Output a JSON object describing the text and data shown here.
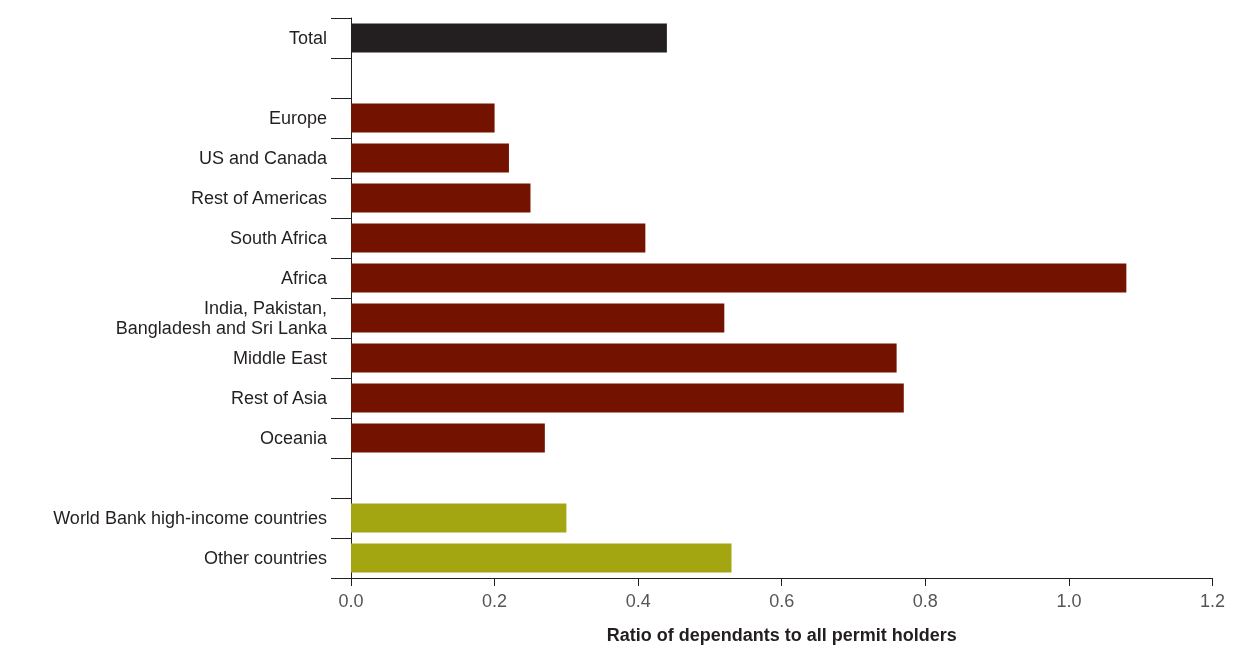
{
  "chart_data": {
    "type": "bar",
    "orientation": "horizontal",
    "xlabel": "Ratio of dependants to all permit holders",
    "categories": [
      "Total",
      null,
      "Europe",
      "US and Canada",
      "Rest of Americas",
      "South Africa",
      "Africa",
      "India, Pakistan,\nBangladesh and Sri Lanka",
      "Middle East",
      "Rest of Asia",
      "Oceania",
      null,
      "World Bank high-income countries",
      "Other countries"
    ],
    "values": [
      0.44,
      null,
      0.2,
      0.22,
      0.25,
      0.41,
      1.08,
      0.52,
      0.76,
      0.77,
      0.27,
      null,
      0.3,
      0.53
    ],
    "colors": [
      "#231f20",
      null,
      "#741200",
      "#741200",
      "#741200",
      "#741200",
      "#741200",
      "#741200",
      "#741200",
      "#741200",
      "#741200",
      null,
      "#a3a611",
      "#a3a611"
    ],
    "xlim": [
      0,
      1.2
    ],
    "xticks": [
      {
        "value": 0,
        "label": "0.0"
      },
      {
        "value": 0.2,
        "label": "0.2"
      },
      {
        "value": 0.4,
        "label": "0.4"
      },
      {
        "value": 0.6,
        "label": "0.6"
      },
      {
        "value": 0.8,
        "label": "0.8"
      },
      {
        "value": 1,
        "label": "1.0"
      },
      {
        "value": 1.2,
        "label": "1.2"
      }
    ],
    "grid": false
  }
}
